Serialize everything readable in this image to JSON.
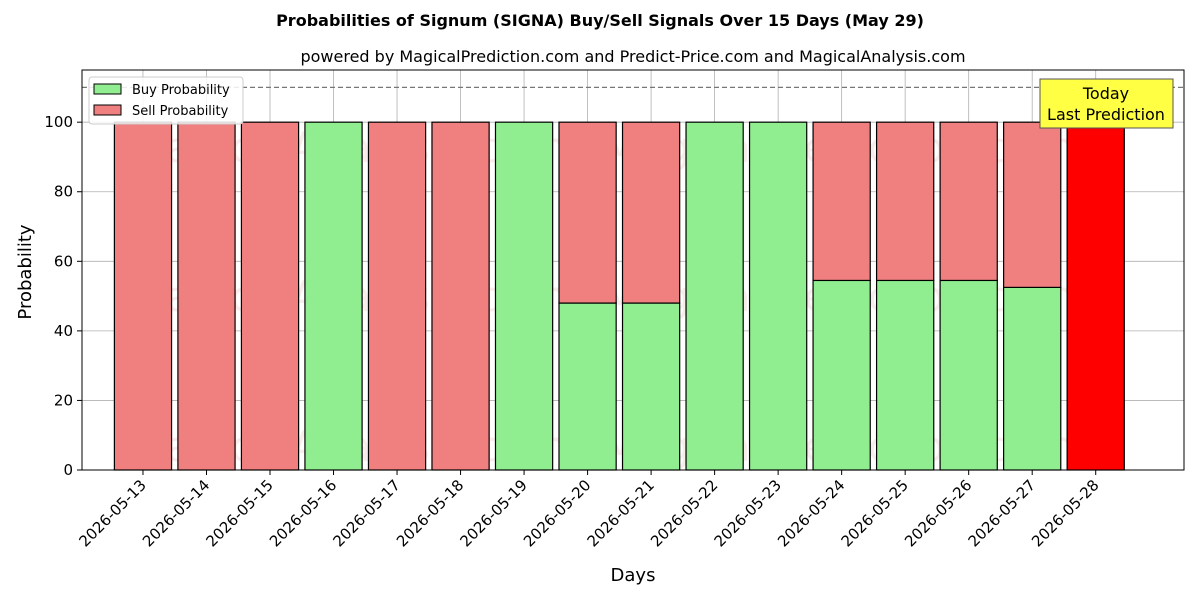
{
  "chart_data": {
    "type": "bar",
    "stacked": true,
    "title": "Probabilities of Signum (SIGNA) Buy/Sell Signals Over 15 Days (May 29)",
    "subtitle": "powered by MagicalPrediction.com and Predict-Price.com and MagicalAnalysis.com",
    "xlabel": "Days",
    "ylabel": "Probability",
    "ylim": [
      0,
      115
    ],
    "yticks": [
      0,
      20,
      40,
      60,
      80,
      100
    ],
    "grid": true,
    "legend_position": "top-left",
    "reference_line": 110,
    "categories": [
      "2026-05-13",
      "2026-05-14",
      "2026-05-15",
      "2026-05-16",
      "2026-05-17",
      "2026-05-18",
      "2026-05-19",
      "2026-05-20",
      "2026-05-21",
      "2026-05-22",
      "2026-05-23",
      "2026-05-24",
      "2026-05-25",
      "2026-05-26",
      "2026-05-27",
      "2026-05-28"
    ],
    "series": [
      {
        "name": "Buy Probability",
        "color": "#90ee90",
        "values": [
          0,
          0,
          0,
          100,
          0,
          0,
          100,
          48,
          48,
          100,
          100,
          54.5,
          54.5,
          54.5,
          52.5,
          0
        ]
      },
      {
        "name": "Sell Probability",
        "color": "#f08080",
        "values": [
          100,
          100,
          100,
          0,
          100,
          100,
          0,
          52,
          52,
          0,
          0,
          45.5,
          45.5,
          45.5,
          47.5,
          100
        ]
      }
    ],
    "highlight": {
      "index": 15,
      "color": "#ff0000"
    },
    "annotation": {
      "lines": [
        "Today",
        "Last Prediction"
      ],
      "background": "#ffff44"
    },
    "watermarks": [
      "MagicalAnalysis.com",
      "MagicalPrediction.com"
    ]
  }
}
